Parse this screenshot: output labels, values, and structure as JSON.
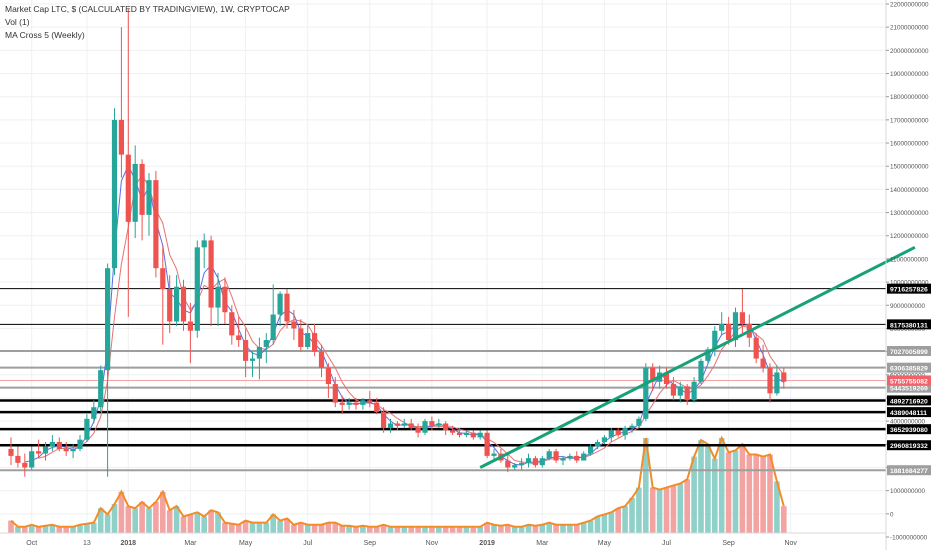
{
  "header": {
    "title": "Market Cap LTC, $ (CALCULATED BY TRADINGVIEW), 1W, CRYPTOCAP",
    "volume_label": "Vol (1)",
    "ma_label": "MA Cross 5 (Weekly)"
  },
  "colors": {
    "up": "#26a69a",
    "down": "#ef5350",
    "vol_up": "#8fd1c8",
    "vol_down": "#f4a3a3",
    "vol_line": "#f28c28",
    "ma_fast": "#5b6ee1",
    "ma_slow": "#e57373",
    "trendline": "#17a178",
    "current_price_bg": "#f0626a"
  },
  "chart_data": {
    "type": "candlestick",
    "price_axis": {
      "min": -1000000000,
      "max": 22000000000,
      "ticks": [
        -1000000000,
        0,
        1000000000,
        2000000000,
        3000000000,
        4000000000,
        5000000000,
        6000000000,
        7000000000,
        8000000000,
        9000000000,
        10000000000,
        11000000000,
        12000000000,
        13000000000,
        14000000000,
        15000000000,
        16000000000,
        17000000000,
        18000000000,
        19000000000,
        20000000000,
        21000000000,
        22000000000
      ],
      "tick_labels": [
        "-1000000000",
        "0",
        "1000000000",
        "2000000000",
        "3000000000",
        "4000000000",
        "5000000000",
        "6000000000",
        "7000000000",
        "8000000000",
        "9000000000",
        "10000000000",
        "11000000000",
        "12000000000",
        "13000000000",
        "14000000000",
        "15000000000",
        "16000000000",
        "17000000000",
        "18000000000",
        "19000000000",
        "20000000000",
        "21000000000",
        "22000000000"
      ]
    },
    "time_axis": {
      "labels": [
        "Oct",
        "13",
        "2018",
        "Mar",
        "May",
        "Jul",
        "Sep",
        "Nov",
        "2019",
        "Mar",
        "May",
        "Jul",
        "Sep",
        "Nov"
      ],
      "label_weeks": [
        3,
        11,
        17,
        26,
        34,
        43,
        52,
        61,
        69,
        77,
        86,
        95,
        104,
        113
      ],
      "bold_labels": [
        "2018",
        "2019"
      ]
    },
    "candles": [
      [
        2800,
        3300,
        2100,
        2500
      ],
      [
        2500,
        2900,
        2000,
        2200
      ],
      [
        2200,
        2600,
        1600,
        2000
      ],
      [
        2000,
        2900,
        1900,
        2700
      ],
      [
        2700,
        3200,
        2400,
        2600
      ],
      [
        2600,
        3100,
        2300,
        2900
      ],
      [
        2900,
        3400,
        2700,
        3100
      ],
      [
        3100,
        3300,
        2700,
        2800
      ],
      [
        2800,
        3100,
        2500,
        2700
      ],
      [
        2700,
        3000,
        2400,
        2800
      ],
      [
        2800,
        3400,
        2700,
        3200
      ],
      [
        3200,
        4300,
        3100,
        4100
      ],
      [
        4100,
        4900,
        3900,
        4600
      ],
      [
        4600,
        6400,
        4400,
        6200
      ],
      [
        6200,
        10800,
        1600,
        10600
      ],
      [
        10600,
        17500,
        10300,
        17000
      ],
      [
        17000,
        21000,
        14500,
        15500
      ],
      [
        15500,
        21800,
        8500,
        12600
      ],
      [
        12600,
        15900,
        11900,
        15100
      ],
      [
        15100,
        15300,
        11800,
        12900
      ],
      [
        12900,
        14700,
        12000,
        14400
      ],
      [
        14400,
        14800,
        10200,
        10600
      ],
      [
        10600,
        11600,
        7300,
        9700
      ],
      [
        9700,
        10300,
        7800,
        8300
      ],
      [
        8300,
        10300,
        8100,
        9800
      ],
      [
        9800,
        10100,
        7900,
        8300
      ],
      [
        8300,
        9100,
        6500,
        7900
      ],
      [
        7900,
        11800,
        7600,
        11500
      ],
      [
        11500,
        12100,
        10600,
        11800
      ],
      [
        11800,
        12000,
        8100,
        8900
      ],
      [
        8900,
        10400,
        8100,
        9800
      ],
      [
        9800,
        10200,
        8200,
        8700
      ],
      [
        8700,
        9000,
        7300,
        7700
      ],
      [
        7700,
        8500,
        7200,
        7500
      ],
      [
        7500,
        8000,
        5900,
        6600
      ],
      [
        6600,
        7000,
        5900,
        6700
      ],
      [
        6700,
        7600,
        5800,
        7200
      ],
      [
        7200,
        7800,
        6500,
        7500
      ],
      [
        7500,
        9900,
        7300,
        8600
      ],
      [
        8600,
        9600,
        8100,
        9500
      ],
      [
        9500,
        9700,
        8000,
        8300
      ],
      [
        8300,
        8800,
        7500,
        8000
      ],
      [
        8000,
        8400,
        7000,
        7200
      ],
      [
        7200,
        8200,
        7100,
        7800
      ],
      [
        7800,
        8200,
        6800,
        7000
      ],
      [
        7000,
        7300,
        5900,
        6300
      ],
      [
        6300,
        6500,
        5000,
        5600
      ],
      [
        5600,
        5900,
        4600,
        4800
      ],
      [
        4800,
        5100,
        4300,
        4700
      ],
      [
        4700,
        5000,
        4500,
        4800
      ],
      [
        4800,
        5000,
        4500,
        4700
      ],
      [
        4700,
        5000,
        4500,
        4900
      ],
      [
        4900,
        5300,
        4600,
        4800
      ],
      [
        4800,
        5000,
        4300,
        4400
      ],
      [
        4400,
        4600,
        3500,
        3700
      ],
      [
        3700,
        4100,
        3500,
        3900
      ],
      [
        3900,
        4000,
        3600,
        3800
      ],
      [
        3800,
        4100,
        3700,
        3900
      ],
      [
        3900,
        4100,
        3600,
        3700
      ],
      [
        3700,
        3900,
        3300,
        3500
      ],
      [
        3500,
        4100,
        3400,
        4000
      ],
      [
        4000,
        4200,
        3600,
        3800
      ],
      [
        3800,
        4100,
        3700,
        3900
      ],
      [
        3900,
        4000,
        3400,
        3600
      ],
      [
        3600,
        3800,
        3400,
        3500
      ],
      [
        3500,
        3700,
        3300,
        3400
      ],
      [
        3400,
        3600,
        3300,
        3500
      ],
      [
        3500,
        3600,
        3200,
        3300
      ],
      [
        3300,
        3600,
        3200,
        3500
      ],
      [
        3500,
        3600,
        2400,
        2500
      ],
      [
        2500,
        2800,
        2300,
        2600
      ],
      [
        2600,
        2800,
        2200,
        2300
      ],
      [
        2300,
        2600,
        1800,
        2000
      ],
      [
        2000,
        2200,
        1900,
        2100
      ],
      [
        2100,
        2400,
        1900,
        2200
      ],
      [
        2200,
        2600,
        2000,
        2400
      ],
      [
        2400,
        2500,
        2000,
        2100
      ],
      [
        2100,
        2500,
        2000,
        2400
      ],
      [
        2400,
        2800,
        2300,
        2700
      ],
      [
        2700,
        2800,
        2200,
        2300
      ],
      [
        2300,
        2500,
        2100,
        2400
      ],
      [
        2400,
        2600,
        2300,
        2500
      ],
      [
        2500,
        2700,
        2200,
        2300
      ],
      [
        2300,
        2700,
        2300,
        2600
      ],
      [
        2600,
        3000,
        2500,
        2900
      ],
      [
        2900,
        3200,
        2800,
        3100
      ],
      [
        3100,
        3400,
        3000,
        3300
      ],
      [
        3300,
        3700,
        3100,
        3600
      ],
      [
        3600,
        3700,
        3300,
        3400
      ],
      [
        3400,
        3800,
        3200,
        3700
      ],
      [
        3700,
        3900,
        3500,
        3800
      ],
      [
        3800,
        4200,
        3700,
        4100
      ],
      [
        4100,
        6500,
        4000,
        6300
      ],
      [
        6300,
        6500,
        5300,
        5700
      ],
      [
        5700,
        6400,
        5400,
        6100
      ],
      [
        6100,
        6300,
        5400,
        5600
      ],
      [
        5600,
        5900,
        4900,
        5100
      ],
      [
        5100,
        5700,
        4800,
        5500
      ],
      [
        5500,
        5600,
        4700,
        4900
      ],
      [
        4900,
        5900,
        4800,
        5700
      ],
      [
        5700,
        6700,
        5600,
        6600
      ],
      [
        6600,
        7200,
        6500,
        7100
      ],
      [
        7100,
        8100,
        6800,
        7900
      ],
      [
        7900,
        8700,
        7700,
        8200
      ],
      [
        8200,
        8500,
        7300,
        7500
      ],
      [
        7500,
        8900,
        7200,
        8700
      ],
      [
        8700,
        9700,
        7800,
        8200
      ],
      [
        8200,
        8600,
        7200,
        7600
      ],
      [
        7600,
        7800,
        6500,
        6700
      ],
      [
        6700,
        7300,
        6100,
        6300
      ],
      [
        6300,
        6500,
        4800,
        5200
      ],
      [
        5200,
        6400,
        5100,
        6100
      ],
      [
        6100,
        6300,
        5400,
        5700
      ]
    ],
    "volume": [
      [
        600,
        "d"
      ],
      [
        300,
        "u"
      ],
      [
        300,
        "d"
      ],
      [
        400,
        "u"
      ],
      [
        300,
        "d"
      ],
      [
        350,
        "u"
      ],
      [
        400,
        "u"
      ],
      [
        300,
        "d"
      ],
      [
        300,
        "d"
      ],
      [
        300,
        "u"
      ],
      [
        400,
        "u"
      ],
      [
        450,
        "u"
      ],
      [
        500,
        "u"
      ],
      [
        1200,
        "u"
      ],
      [
        900,
        "u"
      ],
      [
        1400,
        "u"
      ],
      [
        2000,
        "d"
      ],
      [
        1300,
        "d"
      ],
      [
        1200,
        "u"
      ],
      [
        1500,
        "d"
      ],
      [
        1200,
        "u"
      ],
      [
        1500,
        "d"
      ],
      [
        2000,
        "d"
      ],
      [
        1100,
        "d"
      ],
      [
        1300,
        "u"
      ],
      [
        800,
        "d"
      ],
      [
        900,
        "d"
      ],
      [
        1000,
        "u"
      ],
      [
        800,
        "u"
      ],
      [
        1100,
        "d"
      ],
      [
        1000,
        "u"
      ],
      [
        500,
        "d"
      ],
      [
        450,
        "d"
      ],
      [
        400,
        "d"
      ],
      [
        600,
        "d"
      ],
      [
        500,
        "u"
      ],
      [
        500,
        "u"
      ],
      [
        500,
        "u"
      ],
      [
        900,
        "u"
      ],
      [
        600,
        "u"
      ],
      [
        700,
        "d"
      ],
      [
        400,
        "d"
      ],
      [
        500,
        "d"
      ],
      [
        400,
        "u"
      ],
      [
        400,
        "d"
      ],
      [
        400,
        "d"
      ],
      [
        500,
        "d"
      ],
      [
        500,
        "d"
      ],
      [
        350,
        "d"
      ],
      [
        350,
        "u"
      ],
      [
        300,
        "d"
      ],
      [
        350,
        "u"
      ],
      [
        300,
        "d"
      ],
      [
        300,
        "d"
      ],
      [
        400,
        "d"
      ],
      [
        300,
        "u"
      ],
      [
        300,
        "d"
      ],
      [
        300,
        "u"
      ],
      [
        300,
        "d"
      ],
      [
        300,
        "d"
      ],
      [
        300,
        "u"
      ],
      [
        300,
        "d"
      ],
      [
        300,
        "u"
      ],
      [
        300,
        "d"
      ],
      [
        300,
        "d"
      ],
      [
        300,
        "d"
      ],
      [
        300,
        "u"
      ],
      [
        300,
        "d"
      ],
      [
        300,
        "u"
      ],
      [
        500,
        "d"
      ],
      [
        400,
        "u"
      ],
      [
        350,
        "d"
      ],
      [
        400,
        "d"
      ],
      [
        300,
        "u"
      ],
      [
        300,
        "u"
      ],
      [
        400,
        "u"
      ],
      [
        350,
        "d"
      ],
      [
        400,
        "u"
      ],
      [
        500,
        "u"
      ],
      [
        400,
        "d"
      ],
      [
        400,
        "u"
      ],
      [
        400,
        "u"
      ],
      [
        400,
        "d"
      ],
      [
        500,
        "u"
      ],
      [
        600,
        "u"
      ],
      [
        800,
        "u"
      ],
      [
        900,
        "u"
      ],
      [
        1000,
        "u"
      ],
      [
        1200,
        "d"
      ],
      [
        1300,
        "u"
      ],
      [
        1700,
        "u"
      ],
      [
        2200,
        "u"
      ],
      [
        4600,
        "u"
      ],
      [
        2200,
        "d"
      ],
      [
        2100,
        "u"
      ],
      [
        2200,
        "d"
      ],
      [
        2300,
        "d"
      ],
      [
        2400,
        "u"
      ],
      [
        2600,
        "d"
      ],
      [
        3700,
        "u"
      ],
      [
        4500,
        "u"
      ],
      [
        4300,
        "u"
      ],
      [
        3600,
        "u"
      ],
      [
        4600,
        "u"
      ],
      [
        3900,
        "d"
      ],
      [
        4000,
        "u"
      ],
      [
        4300,
        "d"
      ],
      [
        3800,
        "d"
      ],
      [
        3800,
        "d"
      ],
      [
        3700,
        "d"
      ],
      [
        3800,
        "d"
      ],
      [
        2500,
        "u"
      ],
      [
        1300,
        "d"
      ]
    ],
    "volume_scale_max": 22000000000,
    "horizontal_levels": [
      {
        "value": 9716257826,
        "label": "9716257826",
        "style": "thin-black"
      },
      {
        "value": 8175380131,
        "label": "8175380131",
        "style": "thin-black"
      },
      {
        "value": 7027005899,
        "label": "7027005899",
        "style": "gray"
      },
      {
        "value": 6306385829,
        "label": "6306385829",
        "style": "gray"
      },
      {
        "value": 5443519269,
        "label": "5443519269",
        "style": "gray"
      },
      {
        "value": 4892716920,
        "label": "4892716920",
        "style": "thick-black"
      },
      {
        "value": 4389048111,
        "label": "4389048111",
        "style": "thick-black"
      },
      {
        "value": 3652939080,
        "label": "3652939080",
        "style": "thick-black"
      },
      {
        "value": 2960819332,
        "label": "2960819332",
        "style": "thick-black"
      },
      {
        "value": 1881684277,
        "label": "1881684277",
        "style": "gray"
      }
    ],
    "current_price": {
      "value": 5755755082,
      "label": "5755755082"
    },
    "trendline": {
      "from": [
        68,
        2000
      ],
      "to": [
        131,
        11500
      ]
    },
    "ma_periods": [
      3,
      5
    ],
    "units": "$"
  }
}
